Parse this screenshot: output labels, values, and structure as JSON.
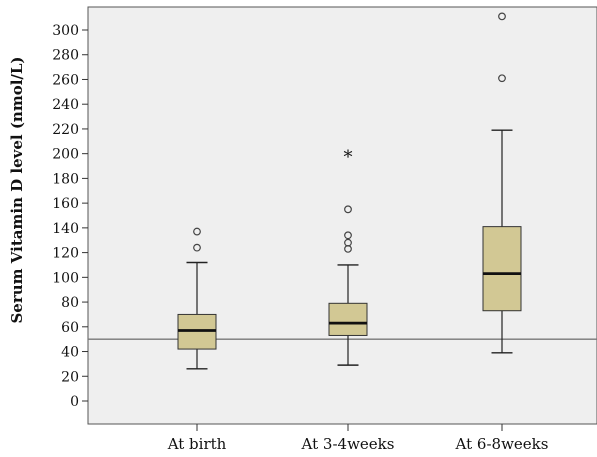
{
  "chart_data": {
    "type": "boxplot",
    "title": "",
    "xlabel": "",
    "ylabel": "Serum Vitamin D level (nmol/L)",
    "ylim": [
      -20,
      315
    ],
    "yticks": [
      0,
      20,
      40,
      60,
      80,
      100,
      120,
      140,
      160,
      180,
      200,
      220,
      240,
      260,
      280,
      300
    ],
    "categories": [
      "At birth",
      "At 3-4weeks",
      "At 6-8weeks"
    ],
    "boxes": [
      {
        "whisker_low": 26,
        "q1": 42,
        "median": 57,
        "q3": 70,
        "whisker_high": 112,
        "outliers": [
          124,
          137
        ],
        "extremes": []
      },
      {
        "whisker_low": 29,
        "q1": 53,
        "median": 63,
        "q3": 79,
        "whisker_high": 110,
        "outliers": [
          123,
          128,
          134,
          155
        ],
        "extremes": [
          198
        ]
      },
      {
        "whisker_low": 39,
        "q1": 73,
        "median": 103,
        "q3": 141,
        "whisker_high": 219,
        "outliers": [
          261,
          311
        ],
        "extremes": []
      }
    ],
    "reference_line": 50,
    "grid": false,
    "colors": {
      "box_fill": "#d2c894",
      "plot_background": "#efefef",
      "reference_line": "#777777"
    }
  }
}
